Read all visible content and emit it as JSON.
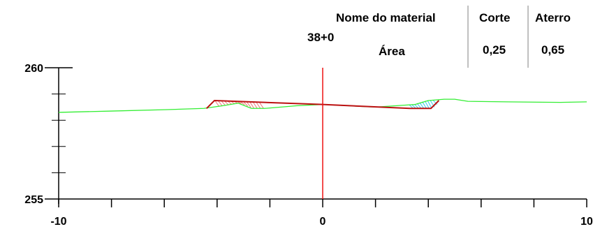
{
  "section_label": "38+0",
  "table": {
    "header_material": "Nome do material",
    "header_cut": "Corte",
    "header_fill": "Aterro",
    "row_label": "Área",
    "cut_value": "0,25",
    "fill_value": "0,65"
  },
  "colors": {
    "ground": "#33ee33",
    "design": "#bb1111",
    "centerline": "#ee1111",
    "cut_hatch": "#ee7777",
    "fill_hatch": "#33ccee",
    "axis": "#000000",
    "divider": "#aaaaaa"
  },
  "chart_data": {
    "type": "line",
    "title": "",
    "xlabel": "",
    "ylabel": "",
    "xlim": [
      -10,
      10
    ],
    "ylim": [
      255,
      260
    ],
    "x_ticks": [
      -10,
      -8,
      -6,
      -4,
      -2,
      0,
      2,
      4,
      6,
      8,
      10
    ],
    "x_tick_labels": [
      {
        "value": -10,
        "label": "-10"
      },
      {
        "value": 0,
        "label": "0"
      },
      {
        "value": 10,
        "label": "10"
      }
    ],
    "y_ticks": [
      255,
      256,
      257,
      258,
      259,
      260
    ],
    "y_tick_labels": [
      {
        "value": 255,
        "label": "255"
      },
      {
        "value": 260,
        "label": "260"
      }
    ],
    "centerline_x": 0,
    "series": [
      {
        "x": [
          -10,
          -8,
          -6,
          -4.5,
          -3.8,
          -3.2,
          -2.7,
          -2.2,
          -1,
          0,
          1,
          2,
          3.5,
          4,
          4.6,
          5,
          5.5,
          7,
          9,
          10
        ],
        "y": [
          258.3,
          258.35,
          258.4,
          258.45,
          258.55,
          258.65,
          258.45,
          258.45,
          258.55,
          258.6,
          258.55,
          258.5,
          258.6,
          258.75,
          258.8,
          258.8,
          258.72,
          258.7,
          258.68,
          258.7
        ]
      },
      {
        "x": [
          -4.4,
          -4.1,
          0,
          3.3,
          4.1,
          4.4
        ],
        "y": [
          258.45,
          258.75,
          258.6,
          258.45,
          258.45,
          258.75
        ]
      }
    ]
  }
}
